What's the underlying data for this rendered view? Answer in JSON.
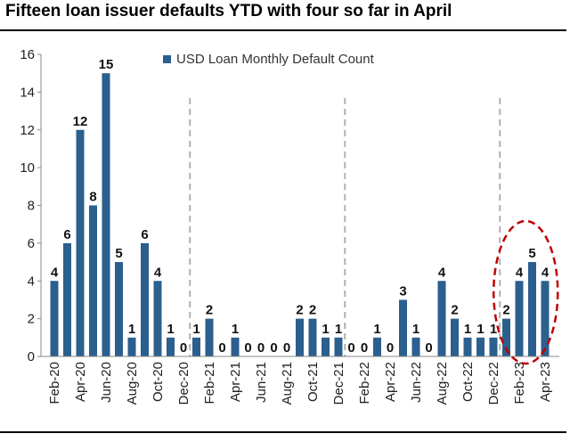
{
  "header": {
    "title": "Fifteen loan issuer defaults YTD with four so far in April"
  },
  "chart_data": {
    "type": "bar",
    "title": "Fifteen loan issuer defaults YTD with four so far in April",
    "xlabel": "",
    "ylabel": "",
    "ylim": [
      0,
      16
    ],
    "yticks": [
      0,
      2,
      4,
      6,
      8,
      10,
      12,
      14,
      16
    ],
    "grid": false,
    "legend_position": "top-center",
    "bar_color": "#2B5F8E",
    "highlight_color": "#C00000",
    "categories": [
      "Feb-20",
      "Mar-20",
      "Apr-20",
      "May-20",
      "Jun-20",
      "Jul-20",
      "Aug-20",
      "Sep-20",
      "Oct-20",
      "Nov-20",
      "Dec-20",
      "Jan-21",
      "Feb-21",
      "Mar-21",
      "Apr-21",
      "May-21",
      "Jun-21",
      "Jul-21",
      "Aug-21",
      "Sep-21",
      "Oct-21",
      "Nov-21",
      "Dec-21",
      "Jan-22",
      "Feb-22",
      "Mar-22",
      "Apr-22",
      "May-22",
      "Jun-22",
      "Jul-22",
      "Aug-22",
      "Sep-22",
      "Oct-22",
      "Nov-22",
      "Dec-22",
      "Jan-23",
      "Feb-23",
      "Mar-23",
      "Apr-23"
    ],
    "tick_labels": [
      "Feb-20",
      "Apr-20",
      "Jun-20",
      "Aug-20",
      "Oct-20",
      "Dec-20",
      "Feb-21",
      "Apr-21",
      "Jun-21",
      "Aug-21",
      "Oct-21",
      "Dec-21",
      "Feb-22",
      "Apr-22",
      "Jun-22",
      "Aug-22",
      "Oct-22",
      "Dec-22",
      "Feb-23",
      "Apr-23"
    ],
    "series": [
      {
        "name": "USD Loan Monthly Default Count",
        "values": [
          4,
          6,
          12,
          8,
          15,
          5,
          1,
          6,
          4,
          1,
          0,
          1,
          2,
          0,
          1,
          0,
          0,
          0,
          0,
          2,
          2,
          1,
          1,
          0,
          0,
          1,
          0,
          3,
          1,
          0,
          4,
          2,
          1,
          1,
          1,
          2,
          4,
          5,
          4
        ]
      }
    ],
    "year_dividers_after": [
      "Dec-20",
      "Dec-21",
      "Dec-22"
    ],
    "highlight_range": [
      "Jan-23",
      "Apr-23"
    ]
  }
}
